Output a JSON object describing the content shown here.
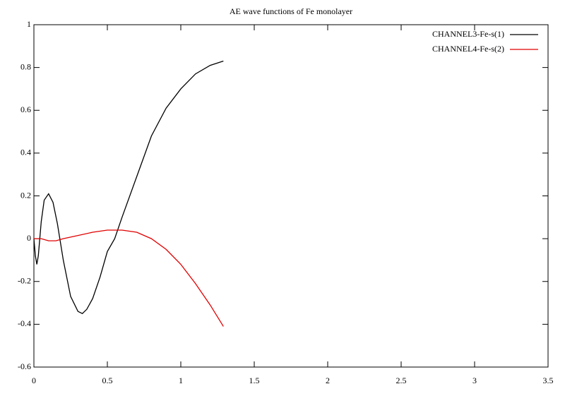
{
  "chart_data": {
    "type": "line",
    "title": "AE wave functions of Fe monolayer",
    "xlim": [
      0,
      3.5
    ],
    "xticks": [
      0,
      0.5,
      1,
      1.5,
      2,
      2.5,
      3,
      3.5
    ],
    "ylim": [
      -0.6,
      1
    ],
    "yticks": [
      -0.6,
      -0.4,
      -0.2,
      0,
      0.2,
      0.4,
      0.6,
      0.8,
      1
    ],
    "legend": "top-right",
    "series": [
      {
        "name": "CHANNEL3-Fe-s(1)",
        "color": "#000000",
        "x": [
          0,
          0.01,
          0.02,
          0.03,
          0.05,
          0.07,
          0.1,
          0.13,
          0.16,
          0.2,
          0.25,
          0.3,
          0.33,
          0.36,
          0.4,
          0.45,
          0.5,
          0.55,
          0.6,
          0.7,
          0.8,
          0.9,
          1.0,
          1.1,
          1.2,
          1.29
        ],
        "values": [
          0,
          -0.08,
          -0.12,
          -0.08,
          0.08,
          0.18,
          0.21,
          0.17,
          0.07,
          -0.1,
          -0.27,
          -0.34,
          -0.35,
          -0.33,
          -0.28,
          -0.18,
          -0.06,
          0.0,
          0.1,
          0.29,
          0.48,
          0.61,
          0.7,
          0.77,
          0.81,
          0.83
        ]
      },
      {
        "name": "CHANNEL4-Fe-s(2)",
        "color": "#e00000",
        "x": [
          0,
          0.05,
          0.1,
          0.15,
          0.2,
          0.3,
          0.4,
          0.5,
          0.6,
          0.7,
          0.8,
          0.9,
          1.0,
          1.1,
          1.2,
          1.29
        ],
        "values": [
          0,
          0,
          -0.01,
          -0.01,
          0,
          0.015,
          0.03,
          0.04,
          0.04,
          0.03,
          0.0,
          -0.05,
          -0.12,
          -0.21,
          -0.31,
          -0.41
        ]
      }
    ]
  }
}
